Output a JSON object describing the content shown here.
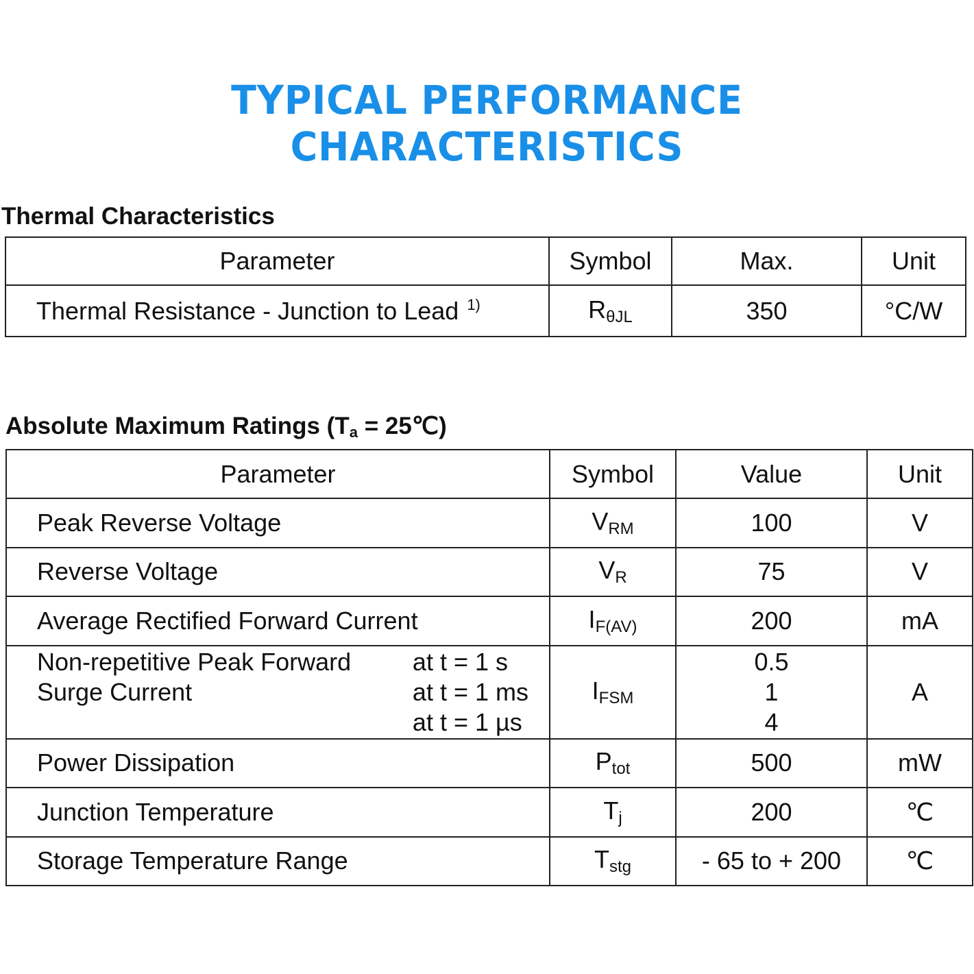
{
  "title": "TYPICAL PERFORMANCE CHARACTERISTICS",
  "accent_color": "#1a8fe8",
  "thermal": {
    "heading": "Thermal Characteristics",
    "headers": [
      "Parameter",
      "Symbol",
      "Max.",
      "Unit"
    ],
    "row": {
      "parameter": "Thermal Resistance - Junction to Lead",
      "note": "1)",
      "symbol": "R",
      "symbol_sub": "θJL",
      "value": "350",
      "unit": "°C/W"
    }
  },
  "ratings": {
    "heading_pre": "Absolute Maximum Ratings (T",
    "heading_sub": "a",
    "heading_post": " = 25℃)",
    "headers": [
      "Parameter",
      "Symbol",
      "Value",
      "Unit"
    ],
    "rows": [
      {
        "parameter": "Peak Reverse Voltage",
        "symbol": "V",
        "symbol_sub": "RM",
        "value": "100",
        "unit": "V"
      },
      {
        "parameter": "Reverse Voltage",
        "symbol": "V",
        "symbol_sub": "R",
        "value": "75",
        "unit": "V"
      },
      {
        "parameter": "Average Rectified Forward Current",
        "symbol": "I",
        "symbol_sub": "F(AV)",
        "value": "200",
        "unit": "mA"
      },
      {
        "parameter": "Power Dissipation",
        "symbol": "P",
        "symbol_sub": "tot",
        "value": "500",
        "unit": "mW"
      },
      {
        "parameter": "Junction Temperature",
        "symbol": "T",
        "symbol_sub": "j",
        "value": "200",
        "unit": "℃"
      },
      {
        "parameter": "Storage Temperature Range",
        "symbol": "T",
        "symbol_sub": "stg",
        "value": "- 65 to + 200",
        "unit": "℃"
      }
    ],
    "surge": {
      "parameter_line1": "Non-repetitive Peak Forward",
      "parameter_line2": "Surge Current",
      "conditions": [
        "at t = 1 s",
        "at t = 1 ms",
        "at t = 1 µs"
      ],
      "symbol": "I",
      "symbol_sub": "FSM",
      "values": [
        "0.5",
        "1",
        "4"
      ],
      "unit": "A"
    }
  }
}
